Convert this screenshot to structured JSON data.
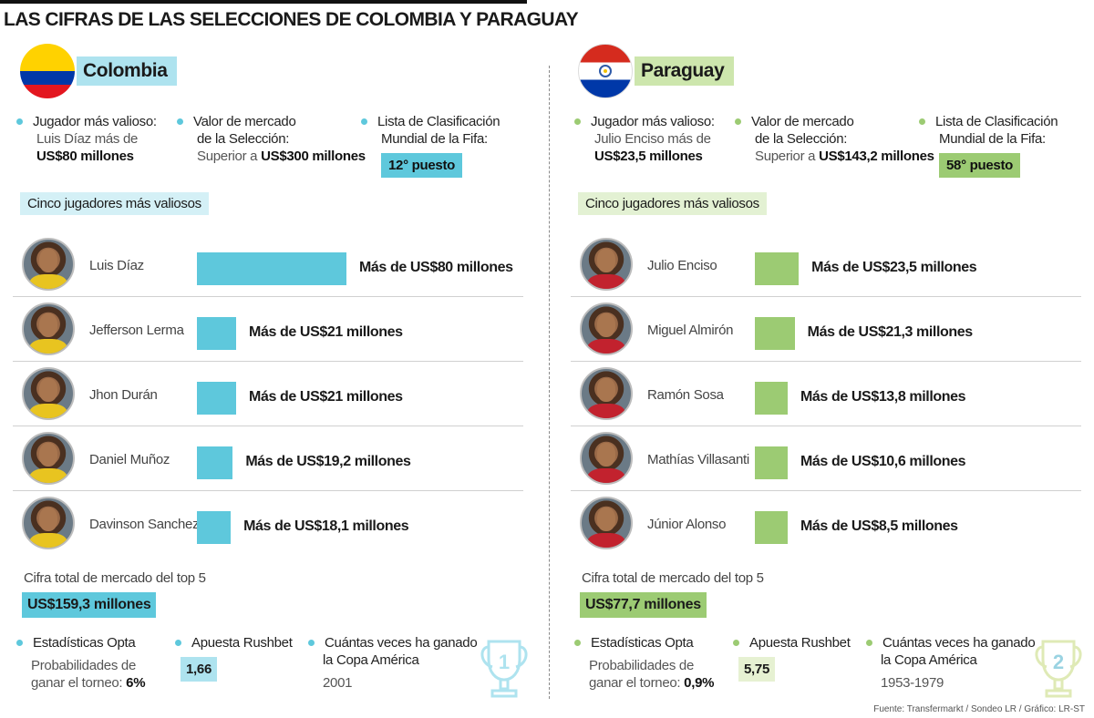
{
  "title": "LAS CIFRAS DE LAS SELECCIONES DE COLOMBIA Y PARAGUAY",
  "source": "Fuente: Transfermarkt / Sondeo LR / Gráfico: LR-ST",
  "colors": {
    "colombia_accent": "#5ec8dc",
    "paraguay_accent": "#9ccb73"
  },
  "colombia": {
    "name": "Colombia",
    "fact1": {
      "title": "Jugador más valioso:",
      "line1": "Luis Díaz más de",
      "value": "US$80 millones"
    },
    "fact2": {
      "title_line1": "Valor de mercado",
      "title_line2": "de la Selección:",
      "prefix": "Superior a",
      "value": "US$300 millones"
    },
    "fact3": {
      "title_line1": "Lista de Clasificación",
      "title_line2": "Mundial de la Fifa:",
      "value": "12° puesto"
    },
    "top5_label": "Cinco jugadores más valiosos",
    "total_label": "Cifra total de mercado del top 5",
    "total_value": "US$159,3 millones",
    "opta": {
      "title": "Estadísticas Opta",
      "line1": "Probabilidades de",
      "line2": "ganar el torneo:",
      "value": "6%"
    },
    "rushbet": {
      "title": "Apuesta Rushbet",
      "value": "1,66"
    },
    "copa": {
      "title_line1": "Cuántas veces ha ganado",
      "title_line2": "la Copa América",
      "years": "2001",
      "count": "1"
    }
  },
  "paraguay": {
    "name": "Paraguay",
    "fact1": {
      "title": "Jugador más valioso:",
      "line1": "Julio Enciso más de",
      "value": "US$23,5 millones"
    },
    "fact2": {
      "title_line1": "Valor de mercado",
      "title_line2": "de la Selección:",
      "prefix": "Superior a",
      "value": "US$143,2 millones"
    },
    "fact3": {
      "title_line1": "Lista de Clasificación",
      "title_line2": "Mundial de la Fifa:",
      "value": "58° puesto"
    },
    "top5_label": "Cinco jugadores más valiosos",
    "total_label": "Cifra total de mercado del top 5",
    "total_value": "US$77,7 millones",
    "opta": {
      "title": "Estadísticas Opta",
      "line1": "Probabilidades de",
      "line2": "ganar el torneo:",
      "value": "0,9%"
    },
    "rushbet": {
      "title": "Apuesta Rushbet",
      "value": "5,75"
    },
    "copa": {
      "title_line1": "Cuántas veces ha ganado",
      "title_line2": "la Copa América",
      "years": "1953-1979",
      "count": "2"
    }
  },
  "chart_data": [
    {
      "type": "bar",
      "title": "Cinco jugadores más valiosos - Colombia",
      "unit": "US$ millones",
      "xlim": [
        0,
        80
      ],
      "categories": [
        "Luis Díaz",
        "Jefferson Lerma",
        "Jhon Durán",
        "Daniel Muñoz",
        "Davinson Sanchez"
      ],
      "values": [
        80,
        21,
        21,
        19.2,
        18.1
      ],
      "labels": [
        "Más de US$80 millones",
        "Más de US$21 millones",
        "Más de US$21 millones",
        "Más de US$19,2 millones",
        "Más de US$18,1 millones"
      ]
    },
    {
      "type": "bar",
      "title": "Cinco jugadores más valiosos - Paraguay",
      "unit": "US$ millones",
      "xlim": [
        0,
        80
      ],
      "categories": [
        "Julio Enciso",
        "Miguel Almirón",
        "Ramón Sosa",
        "Mathías Villasanti",
        "Júnior Alonso"
      ],
      "values": [
        23.5,
        21.3,
        13.8,
        10.6,
        8.5
      ],
      "labels": [
        "Más de US$23,5 millones",
        "Más de US$21,3 millones",
        "Más de US$13,8 millones",
        "Más de US$10,6 millones",
        "Más de US$8,5 millones"
      ]
    }
  ]
}
